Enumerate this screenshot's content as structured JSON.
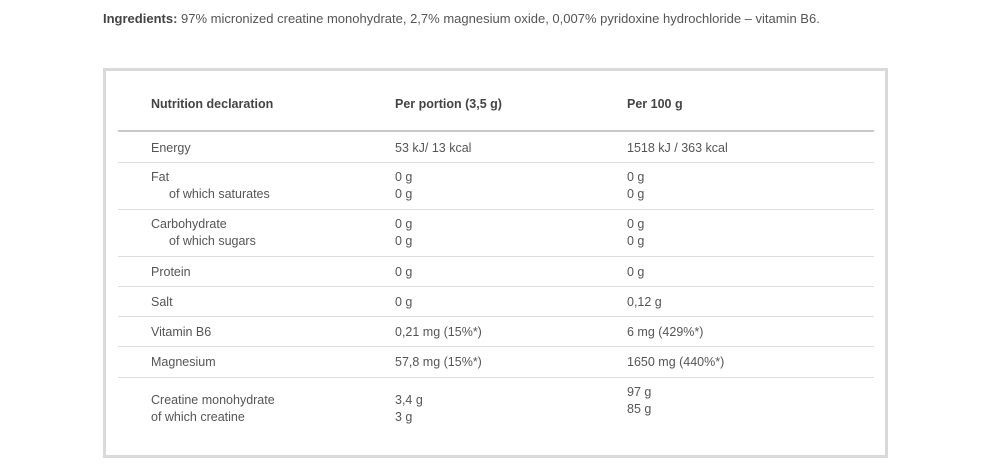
{
  "ingredients": {
    "label": "Ingredients:",
    "text": " 97% micronized creatine monohydrate, 2,7% magnesium oxide, 0,007% pyridoxine hydrochloride – vitamin B6."
  },
  "table": {
    "headers": [
      "Nutrition declaration",
      "Per portion (3,5 g)",
      "Per 100 g"
    ],
    "rows": [
      {
        "name": "Energy",
        "portion": "53  kJ/  13 kcal",
        "per100": "1518 kJ / 363 kcal"
      },
      {
        "name": "Fat",
        "sub": "of which saturates",
        "portion": "0 g",
        "portion_sub": "0 g",
        "per100": "0 g",
        "per100_sub": "0 g"
      },
      {
        "name": "Carbohydrate",
        "sub": "of which sugars",
        "portion": "0 g",
        "portion_sub": "0 g",
        "per100": "0 g",
        "per100_sub": "0 g"
      },
      {
        "name": "Protein",
        "portion": "0 g",
        "per100": "0 g"
      },
      {
        "name": "Salt",
        "portion": "0 g",
        "per100": "0,12 g"
      },
      {
        "name": "Vitamin B6",
        "portion": "0,21 mg (15%*)",
        "per100": "6 mg (429%*)"
      },
      {
        "name": "Magnesium",
        "portion": "57,8 mg (15%*)",
        "per100": "1650 mg (440%*)"
      },
      {
        "name": "Creatine monohydrate",
        "sub": "of which creatine",
        "portion": "3,4 g",
        "portion_sub": "3 g",
        "per100": "97 g",
        "per100_sub": "85 g"
      }
    ]
  }
}
